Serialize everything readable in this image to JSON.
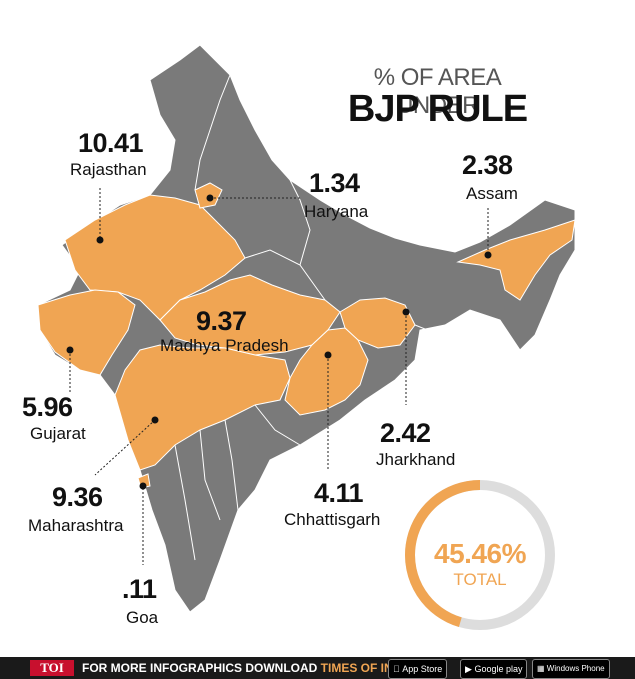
{
  "title": {
    "line1": "% OF AREA UNDER",
    "line2": "BJP RULE"
  },
  "states": [
    {
      "id": "rajasthan",
      "value": "10.41",
      "name": "Rajasthan"
    },
    {
      "id": "haryana",
      "value": "1.34",
      "name": "Haryana"
    },
    {
      "id": "assam",
      "value": "2.38",
      "name": "Assam"
    },
    {
      "id": "madhya-pradesh",
      "value": "9.37",
      "name": "Madhya Pradesh"
    },
    {
      "id": "gujarat",
      "value": "5.96",
      "name": "Gujarat"
    },
    {
      "id": "jharkhand",
      "value": "2.42",
      "name": "Jharkhand"
    },
    {
      "id": "maharashtra",
      "value": "9.36",
      "name": "Maharashtra"
    },
    {
      "id": "chhattisgarh",
      "value": "4.11",
      "name": "Chhattisgarh"
    },
    {
      "id": "goa",
      "value": ".11",
      "name": "Goa"
    }
  ],
  "total": {
    "value": "45.46%",
    "label": "TOTAL",
    "fraction": 0.4546
  },
  "colors": {
    "bjp": "#f0a553",
    "other": "#7a7a7a",
    "ring_track": "#dddddd"
  },
  "footer": {
    "logo": "TOI",
    "text1": "FOR MORE  INFOGRAPHICS DOWNLOAD ",
    "text2": "TIMES OF INDIA  APP",
    "store1": "App Store",
    "store2": "Google play",
    "store3": "Windows Phone"
  }
}
